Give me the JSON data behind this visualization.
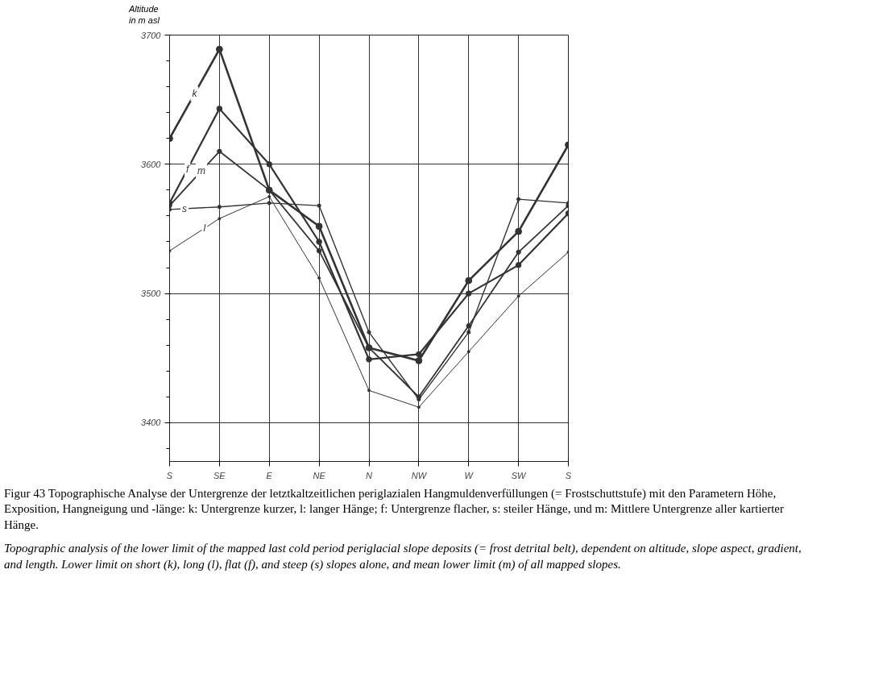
{
  "chart_data": {
    "type": "line",
    "ylabel": "Altitude\nin m asl",
    "categories": [
      "S",
      "SE",
      "E",
      "NE",
      "N",
      "NW",
      "W",
      "SW",
      "S"
    ],
    "series": [
      {
        "name": "k",
        "color": "#333333",
        "values": [
          3620,
          3689,
          3580,
          3552,
          3458,
          3448,
          3510,
          3548,
          3615
        ]
      },
      {
        "name": "f",
        "color": "#333333",
        "values": [
          3570,
          3643,
          3600,
          3540,
          3449,
          3453,
          3500,
          3522,
          3562
        ]
      },
      {
        "name": "m",
        "color": "#333333",
        "values": [
          3568,
          3610,
          3580,
          3533,
          3458,
          3420,
          3475,
          3532,
          3568
        ]
      },
      {
        "name": "s",
        "color": "#333333",
        "values": [
          3565,
          3567,
          3570,
          3568,
          3470,
          3418,
          3470,
          3573,
          3570
        ]
      },
      {
        "name": "l",
        "color": "#333333",
        "values": [
          3533,
          3558,
          3575,
          3512,
          3425,
          3412,
          3455,
          3498,
          3532
        ]
      }
    ],
    "ylim": [
      3370,
      3700
    ],
    "yticks": [
      3400,
      3500,
      3600,
      3700
    ],
    "grid": true,
    "legend": false,
    "marker": "circle",
    "line_style": "solid",
    "annotations": [
      "Figur 43   Topographische Analyse der Untergrenze der letztkaltzeitlichen periglazialen Hangmuldenverfüllungen (= Frostschuttstufe) mit den Parametern Höhe, Exposition, Hangneigung und -länge: k: Untergrenze kurzer, l: langer Hänge; f: Untergrenze flacher, s: steiler Hänge, und m: Mittlere Untergrenze aller kartierter Hänge.",
      "Topographic analysis of the lower limit of the mapped last cold period periglacial slope deposits (= frost detrital belt), dependent on altitude, slope aspect, gradient, and length. Lower limit on short (k), long (l), flat (f), and steep (s) slopes alone, and mean lower limit (m) of all mapped slopes."
    ]
  }
}
